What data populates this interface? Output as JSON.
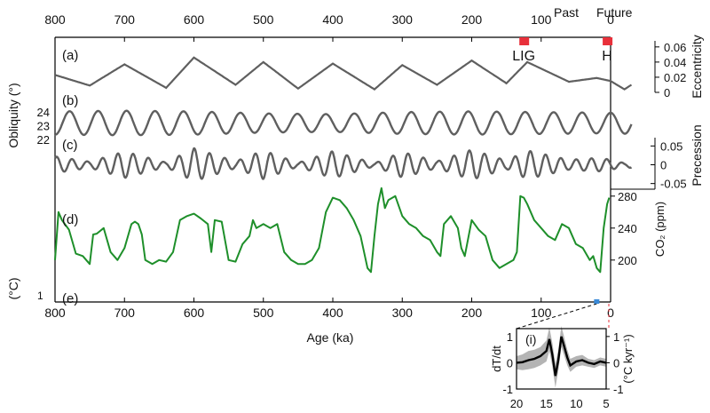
{
  "chart_data": [
    {
      "type": "line",
      "panel": "main",
      "x_axis": {
        "label": "Age (ka)",
        "lim": [
          800,
          -30
        ],
        "ticks": [
          800,
          700,
          600,
          500,
          400,
          300,
          200,
          100,
          0
        ],
        "tick_labels": [
          "800",
          "700",
          "600",
          "500",
          "400",
          "300",
          "200",
          "100",
          "0"
        ]
      },
      "top_labels": [
        "Past",
        "Future"
      ],
      "markers": [
        {
          "label": "LIG",
          "x": 125,
          "color": "#e8303a"
        },
        {
          "label": "H",
          "x": 5,
          "color": "#e8303a"
        }
      ],
      "colors": {
        "orbital": "#5f5f5f",
        "co2": "#1e8f2a",
        "marker": "#e8303a",
        "axis": "#000000"
      },
      "panels": [
        {
          "key": "a",
          "label": "(a)",
          "series_name": "Eccentricity",
          "ylabel": "Eccentricity",
          "yticks": [
            0,
            0.02,
            0.04,
            0.06
          ],
          "ytick_labels": [
            "0",
            "0.02",
            "0.04",
            "0.06"
          ],
          "ylim": [
            0,
            0.068
          ],
          "x": [
            800,
            750,
            700,
            640,
            600,
            540,
            500,
            450,
            400,
            340,
            300,
            250,
            200,
            150,
            120,
            60,
            20,
            0,
            -20,
            -30
          ],
          "y": [
            0.023,
            0.009,
            0.037,
            0.006,
            0.046,
            0.01,
            0.04,
            0.005,
            0.038,
            0.004,
            0.036,
            0.01,
            0.042,
            0.012,
            0.04,
            0.014,
            0.019,
            0.015,
            0.004,
            0.01
          ]
        },
        {
          "key": "b",
          "label": "(b)",
          "series_name": "Obliquity",
          "ylabel": "Obliquity (°)",
          "yticks": [
            22,
            23,
            24
          ],
          "ytick_labels": [
            "22",
            "23",
            "24"
          ],
          "ylim": [
            21.8,
            24.6
          ],
          "period_ka": 41,
          "mean": 23.2,
          "x": [
            800,
            700,
            600,
            500,
            400,
            300,
            200,
            100,
            0,
            -30
          ],
          "amplitude": [
            0.85,
            0.9,
            0.85,
            0.7,
            0.65,
            0.8,
            0.85,
            0.8,
            0.75,
            0.8
          ]
        },
        {
          "key": "c",
          "label": "(c)",
          "series_name": "Precession",
          "ylabel": "Precession",
          "yticks": [
            -0.05,
            0,
            0.05
          ],
          "ytick_labels": [
            "-0.05",
            "0",
            "0.05"
          ],
          "ylim": [
            -0.065,
            0.065
          ],
          "period_ka": 22,
          "x": [
            800,
            750,
            700,
            640,
            600,
            540,
            500,
            450,
            400,
            340,
            300,
            250,
            200,
            150,
            120,
            60,
            20,
            0,
            -20,
            -30
          ],
          "amplitude": [
            0.022,
            0.008,
            0.035,
            0.006,
            0.044,
            0.009,
            0.038,
            0.005,
            0.036,
            0.004,
            0.034,
            0.009,
            0.04,
            0.011,
            0.038,
            0.013,
            0.018,
            0.014,
            0.004,
            0.009
          ]
        },
        {
          "key": "d",
          "label": "(d)",
          "series_name": "CO2",
          "ylabel": "CO₂ (ppm)",
          "yticks": [
            200,
            240,
            280
          ],
          "ytick_labels": [
            "200",
            "240",
            "280"
          ],
          "ylim": [
            172,
            292
          ],
          "x": [
            800,
            795,
            790,
            780,
            770,
            760,
            750,
            745,
            740,
            730,
            720,
            710,
            700,
            690,
            685,
            680,
            675,
            670,
            660,
            650,
            640,
            630,
            620,
            610,
            600,
            590,
            580,
            575,
            570,
            560,
            550,
            540,
            530,
            520,
            515,
            510,
            500,
            490,
            480,
            470,
            460,
            450,
            440,
            430,
            420,
            410,
            400,
            390,
            380,
            370,
            360,
            350,
            345,
            340,
            335,
            330,
            325,
            320,
            310,
            300,
            290,
            280,
            270,
            260,
            250,
            245,
            240,
            235,
            230,
            220,
            215,
            210,
            200,
            190,
            180,
            170,
            160,
            150,
            140,
            135,
            130,
            125,
            120,
            110,
            100,
            90,
            80,
            70,
            60,
            50,
            40,
            30,
            25,
            20,
            15,
            10,
            5,
            2
          ],
          "y": [
            200,
            260,
            250,
            238,
            208,
            205,
            195,
            232,
            233,
            240,
            210,
            200,
            215,
            245,
            248,
            245,
            232,
            200,
            195,
            200,
            198,
            210,
            250,
            255,
            258,
            252,
            245,
            210,
            250,
            248,
            200,
            198,
            220,
            230,
            250,
            240,
            245,
            240,
            245,
            210,
            200,
            195,
            195,
            200,
            215,
            260,
            278,
            275,
            265,
            250,
            230,
            190,
            185,
            230,
            270,
            290,
            265,
            275,
            280,
            255,
            245,
            240,
            230,
            225,
            210,
            205,
            245,
            250,
            255,
            240,
            215,
            205,
            250,
            238,
            230,
            200,
            190,
            195,
            200,
            210,
            280,
            278,
            270,
            250,
            240,
            230,
            225,
            245,
            240,
            220,
            215,
            200,
            205,
            190,
            185,
            240,
            270,
            278
          ]
        },
        {
          "key": "e",
          "label": "(e)",
          "ylabel": "(°C)",
          "yticks": [
            1
          ],
          "ytick_labels": [
            "1"
          ]
        }
      ]
    },
    {
      "type": "line",
      "panel": "inset",
      "label": "(i)",
      "xlabel": "",
      "x_axis": {
        "lim": [
          20,
          5
        ],
        "ticks": [
          20,
          15,
          10,
          5
        ],
        "tick_labels": [
          "20",
          "15",
          "10",
          "5"
        ]
      },
      "ylabel_left": "dT/dt",
      "ylabel_right": "(°C kyr⁻¹)",
      "ylim": [
        -1,
        1.3
      ],
      "yticks": [
        -1,
        0,
        1
      ],
      "ytick_labels": [
        "-1",
        "0",
        "1"
      ],
      "colors": {
        "line": "#000000",
        "band": "#b4b4b4"
      },
      "x": [
        20,
        19,
        18,
        17,
        16,
        15,
        14.5,
        14,
        13.5,
        13,
        12.5,
        12,
        11.5,
        11,
        10,
        9,
        8,
        7,
        6,
        5
      ],
      "y": [
        0.0,
        0.02,
        0.1,
        0.15,
        0.25,
        0.45,
        0.9,
        0.3,
        -0.5,
        0.1,
        1.0,
        0.6,
        0.2,
        -0.1,
        0.05,
        0.1,
        0.0,
        -0.05,
        0.05,
        0.0
      ],
      "band_halfwidth": [
        0.25,
        0.3,
        0.35,
        0.35,
        0.35,
        0.4,
        0.45,
        0.45,
        0.45,
        0.4,
        0.4,
        0.35,
        0.3,
        0.25,
        0.2,
        0.2,
        0.15,
        0.15,
        0.15,
        0.15
      ]
    }
  ]
}
